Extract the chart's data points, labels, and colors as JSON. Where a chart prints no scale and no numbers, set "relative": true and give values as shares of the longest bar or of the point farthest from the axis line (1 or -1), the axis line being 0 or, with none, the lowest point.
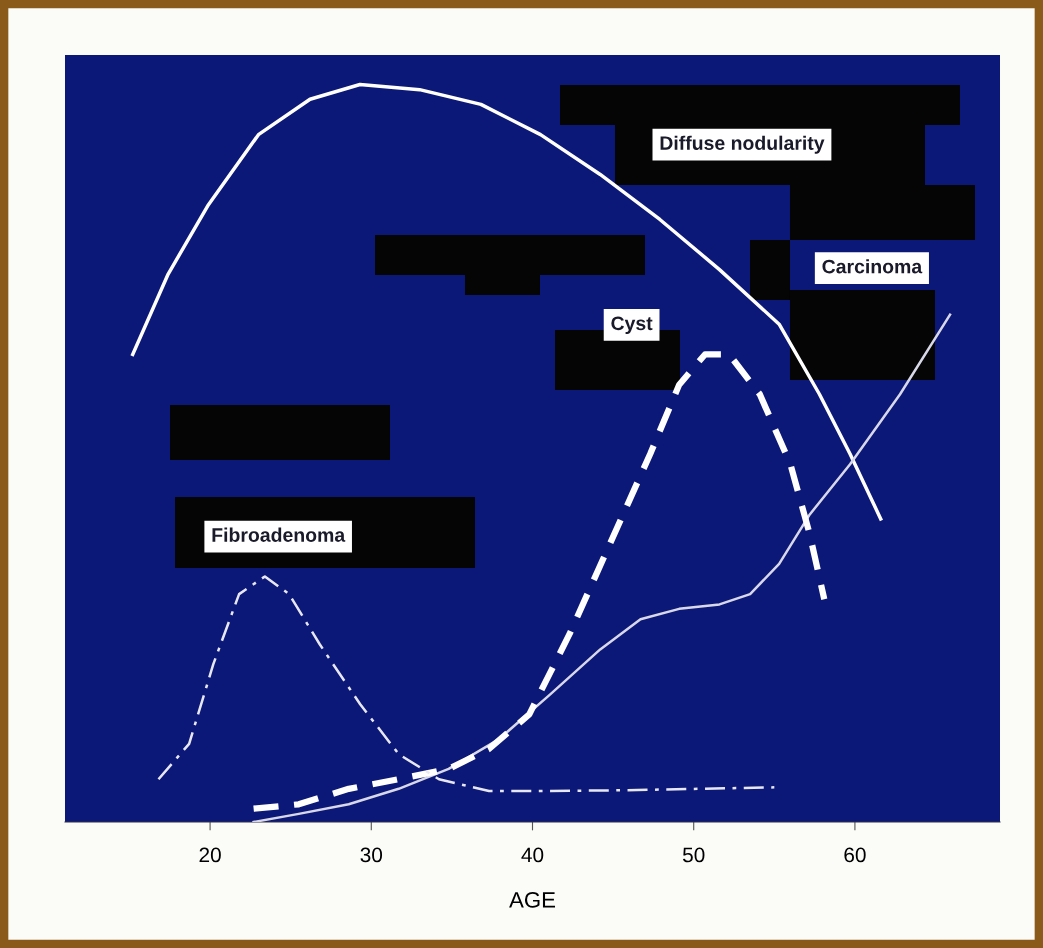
{
  "chart_data": {
    "type": "line",
    "relative": true,
    "xlabel": "AGE",
    "xlim": [
      11,
      69
    ],
    "xticks": [
      20,
      30,
      40,
      50,
      60
    ],
    "grid": false,
    "legend": false,
    "series": [
      {
        "name": "Diffuse nodularity",
        "color": "#ffffff",
        "line_style": "solid",
        "x": [
          15.2,
          17.4,
          19.9,
          23.0,
          26.2,
          29.3,
          33.0,
          36.8,
          40.5,
          44.2,
          47.9,
          51.6,
          55.3,
          57.8,
          59.7,
          61.6
        ],
        "values": [
          0.634,
          0.743,
          0.837,
          0.932,
          0.98,
          1.0,
          0.993,
          0.973,
          0.932,
          0.878,
          0.817,
          0.749,
          0.675,
          0.58,
          0.499,
          0.411
        ]
      },
      {
        "name": "Carcinoma",
        "color": "#d8d8e8",
        "line_style": "solid",
        "x": [
          22.7,
          25.5,
          28.6,
          31.7,
          34.8,
          37.9,
          41.1,
          44.2,
          46.7,
          49.1,
          51.6,
          53.5,
          55.3,
          57.2,
          59.7,
          62.8,
          65.9
        ],
        "values": [
          0.0,
          0.011,
          0.024,
          0.045,
          0.072,
          0.112,
          0.173,
          0.234,
          0.275,
          0.289,
          0.295,
          0.309,
          0.35,
          0.417,
          0.485,
          0.58,
          0.688
        ]
      },
      {
        "name": "Cyst",
        "color": "#ffffff",
        "line_style": "dashed",
        "x": [
          22.7,
          25.5,
          28.6,
          31.7,
          34.8,
          37.3,
          39.8,
          42.3,
          44.8,
          47.3,
          49.1,
          50.7,
          52.2,
          54.1,
          56.0,
          57.2,
          58.1
        ],
        "values": [
          0.018,
          0.024,
          0.045,
          0.058,
          0.072,
          0.099,
          0.146,
          0.255,
          0.377,
          0.499,
          0.593,
          0.634,
          0.634,
          0.58,
          0.485,
          0.39,
          0.302
        ]
      },
      {
        "name": "Fibroadenoma",
        "color": "#e8e8f4",
        "line_style": "dashdot",
        "x": [
          16.8,
          18.7,
          20.2,
          21.8,
          23.4,
          24.9,
          26.8,
          29.3,
          31.7,
          34.2,
          37.3,
          41.1,
          45.4,
          50.4,
          55.0
        ],
        "values": [
          0.058,
          0.106,
          0.214,
          0.309,
          0.333,
          0.309,
          0.241,
          0.16,
          0.092,
          0.058,
          0.042,
          0.042,
          0.043,
          0.045,
          0.047
        ]
      }
    ]
  }
}
